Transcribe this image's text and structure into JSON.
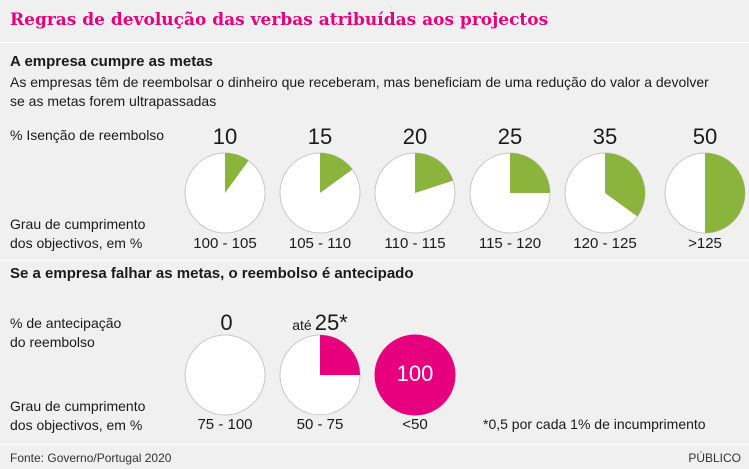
{
  "title": "Regras de devolução das verbas atribuídas aos projectos",
  "colors": {
    "title": "#e6007e",
    "green": "#8bb43c",
    "magenta": "#e6007e",
    "background": "#f0f0f0"
  },
  "section1": {
    "heading": "A empresa cumpre as metas",
    "description": "As empresas têm de reembolsar o dinheiro que receberam, mas beneficiam de uma redução do valor a devolver se as metas forem ultrapassadas",
    "row_label": "% Isenção de reembolso",
    "range_label_line1": "Grau de cumprimento",
    "range_label_line2": "dos objectivos, em %",
    "items": [
      {
        "value": "10",
        "range": "100 - 105",
        "pct": 10
      },
      {
        "value": "15",
        "range": "105 - 110",
        "pct": 15
      },
      {
        "value": "20",
        "range": "110 - 115",
        "pct": 20
      },
      {
        "value": "25",
        "range": "115 - 120",
        "pct": 25
      },
      {
        "value": "35",
        "range": "120 - 125",
        "pct": 35
      },
      {
        "value": "50",
        "range": ">125",
        "pct": 50
      }
    ]
  },
  "section2": {
    "heading": "Se a empresa falhar as metas, o reembolso é antecipado",
    "row_label_line1": "% de antecipação",
    "row_label_line2": "do reembolso",
    "range_label_line1": "Grau de cumprimento",
    "range_label_line2": "dos objectivos, em %",
    "items": [
      {
        "value": "0",
        "prefix": "",
        "range": "75 - 100",
        "pct": 0
      },
      {
        "value": "25*",
        "prefix": "até",
        "range": "50 - 75",
        "pct": 25
      },
      {
        "value": "100",
        "prefix": "",
        "range": "<50",
        "pct": 100
      }
    ],
    "note": "*0,5 por cada 1% de incumprimento"
  },
  "footer": {
    "source": "Fonte: Governo/Portugal 2020",
    "brand": "PÚBLICO"
  }
}
